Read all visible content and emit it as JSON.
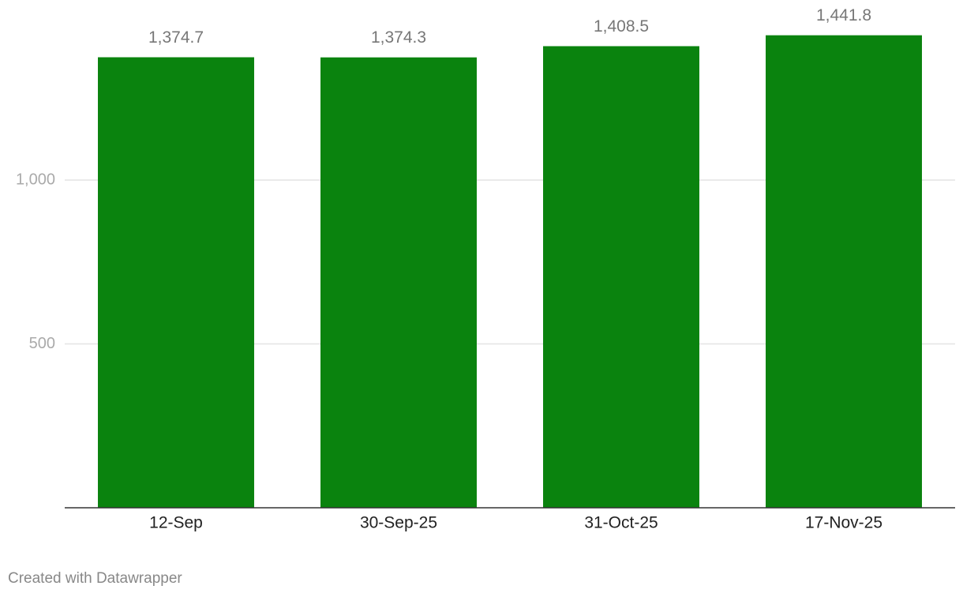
{
  "chart_data": {
    "type": "bar",
    "categories": [
      "12-Sep",
      "30-Sep-25",
      "31-Oct-25",
      "17-Nov-25"
    ],
    "values": [
      1374.7,
      1374.3,
      1408.5,
      1441.8
    ],
    "value_labels": [
      "1,374.7",
      "1,374.3",
      "1,408.5",
      "1,441.8"
    ],
    "color": "#0a830e",
    "ylim": [
      0,
      1500
    ],
    "yticks": [
      500,
      {
        "value": 1000,
        "label": "1,000"
      }
    ],
    "grid": true,
    "credit": "Created with Datawrapper"
  }
}
